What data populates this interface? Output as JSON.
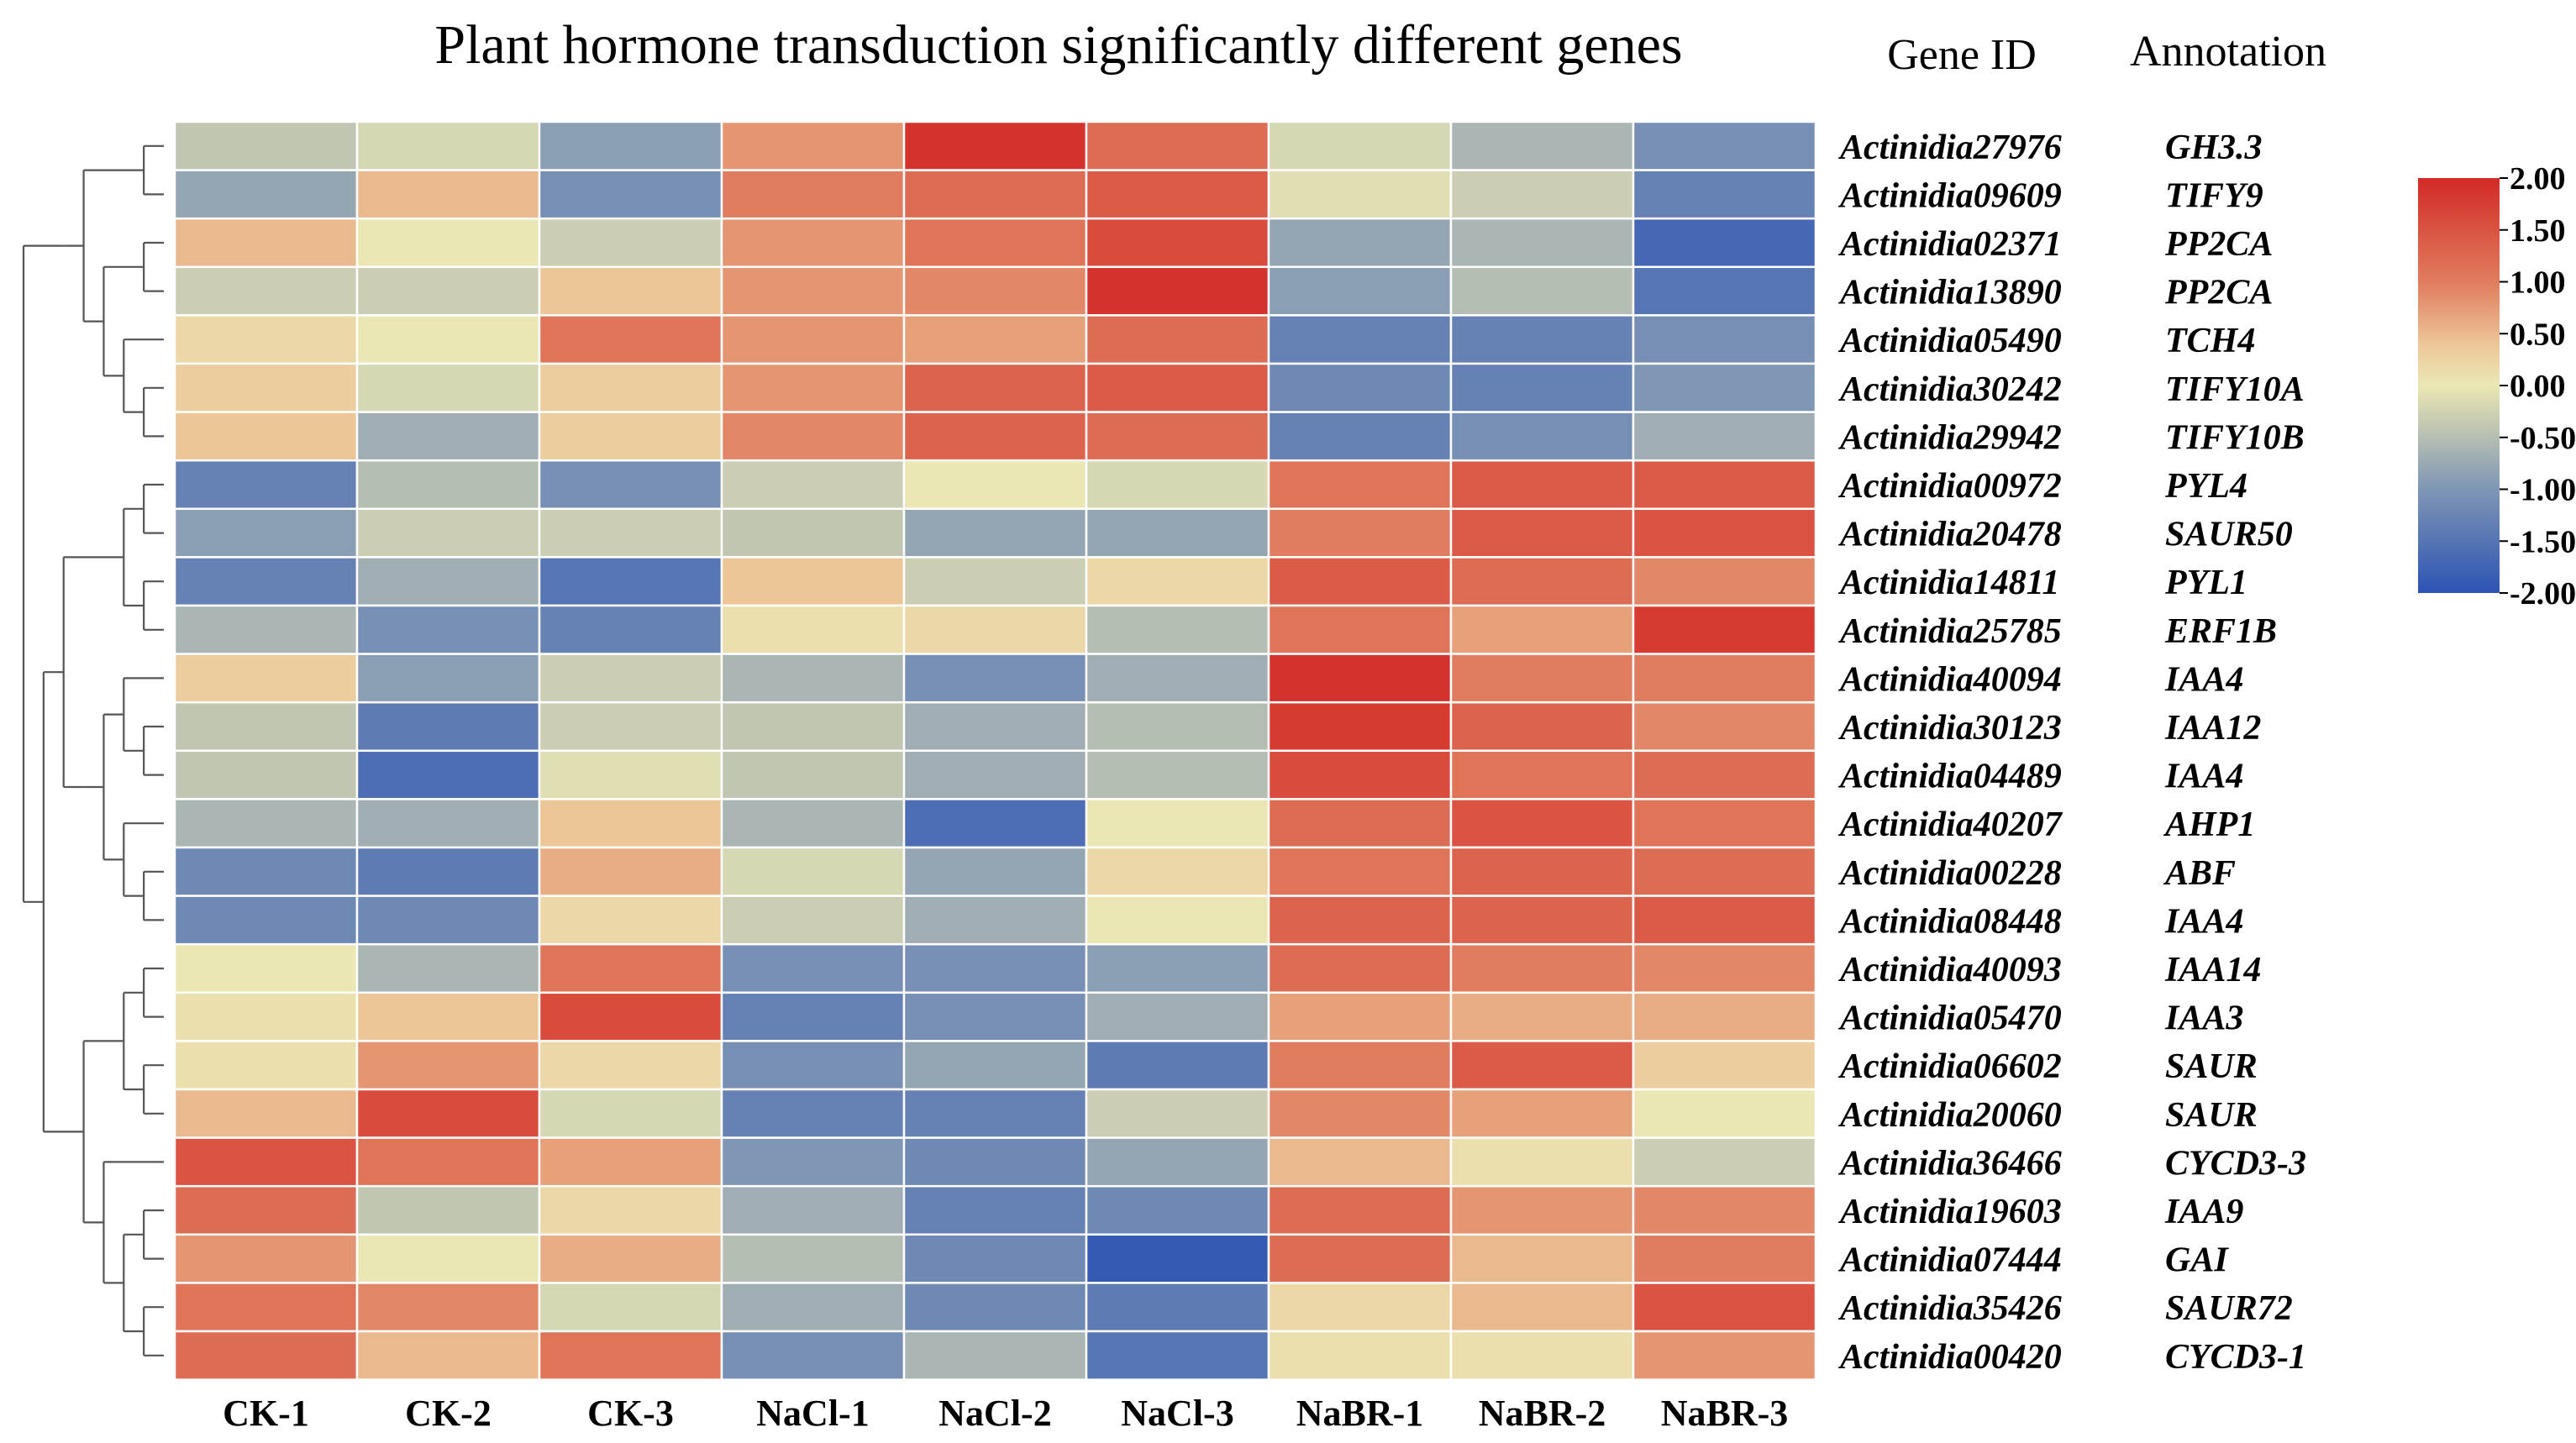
{
  "chart_data": {
    "type": "heatmap",
    "title": "Plant hormone transduction significantly different genes",
    "columns": [
      "CK-1",
      "CK-2",
      "CK-3",
      "NaCl-1",
      "NaCl-2",
      "NaCl-3",
      "NaBR-1",
      "NaBR-2",
      "NaBR-3"
    ],
    "row_header_gene_id": "Gene ID",
    "row_header_annotation": "Annotation",
    "rows": [
      {
        "gene_id": "Actinidia27976",
        "annotation": "GH3.3",
        "values": [
          -0.4,
          -0.2,
          -0.9,
          0.8,
          1.9,
          1.2,
          -0.2,
          -0.6,
          -1.1
        ]
      },
      {
        "gene_id": "Actinidia09609",
        "annotation": "TIFY9",
        "values": [
          -0.8,
          0.5,
          -1.1,
          1.0,
          1.2,
          1.4,
          -0.1,
          -0.3,
          -1.3
        ]
      },
      {
        "gene_id": "Actinidia02371",
        "annotation": "PP2CA",
        "values": [
          0.5,
          0.0,
          -0.3,
          0.8,
          1.1,
          1.6,
          -0.8,
          -0.6,
          -1.7
        ]
      },
      {
        "gene_id": "Actinidia13890",
        "annotation": "PP2CA",
        "values": [
          -0.3,
          -0.3,
          0.4,
          0.8,
          0.9,
          1.9,
          -0.9,
          -0.5,
          -1.5
        ]
      },
      {
        "gene_id": "Actinidia05490",
        "annotation": "TCH4",
        "values": [
          0.2,
          0.0,
          1.1,
          0.8,
          0.7,
          1.2,
          -1.3,
          -1.3,
          -1.1
        ]
      },
      {
        "gene_id": "Actinidia30242",
        "annotation": "TIFY10A",
        "values": [
          0.3,
          -0.2,
          0.3,
          0.8,
          1.3,
          1.4,
          -1.2,
          -1.3,
          -1.0
        ]
      },
      {
        "gene_id": "Actinidia29942",
        "annotation": "TIFY10B",
        "values": [
          0.4,
          -0.7,
          0.3,
          0.9,
          1.3,
          1.2,
          -1.3,
          -1.1,
          -0.7
        ]
      },
      {
        "gene_id": "Actinidia00972",
        "annotation": "PYL4",
        "values": [
          -1.3,
          -0.5,
          -1.1,
          -0.3,
          0.0,
          -0.2,
          1.1,
          1.4,
          1.4
        ]
      },
      {
        "gene_id": "Actinidia20478",
        "annotation": "SAUR50",
        "values": [
          -0.9,
          -0.3,
          -0.3,
          -0.4,
          -0.8,
          -0.8,
          1.0,
          1.4,
          1.5
        ]
      },
      {
        "gene_id": "Actinidia14811",
        "annotation": "PYL1",
        "values": [
          -1.3,
          -0.7,
          -1.5,
          0.4,
          -0.3,
          0.2,
          1.4,
          1.2,
          0.9
        ]
      },
      {
        "gene_id": "Actinidia25785",
        "annotation": "ERF1B",
        "values": [
          -0.6,
          -1.1,
          -1.3,
          0.1,
          0.2,
          -0.5,
          1.1,
          0.7,
          1.8
        ]
      },
      {
        "gene_id": "Actinidia40094",
        "annotation": "IAA4",
        "values": [
          0.3,
          -0.9,
          -0.3,
          -0.6,
          -1.1,
          -0.7,
          1.9,
          1.0,
          1.0
        ]
      },
      {
        "gene_id": "Actinidia30123",
        "annotation": "IAA12",
        "values": [
          -0.4,
          -1.4,
          -0.3,
          -0.4,
          -0.7,
          -0.5,
          1.8,
          1.3,
          0.9
        ]
      },
      {
        "gene_id": "Actinidia04489",
        "annotation": "IAA4",
        "values": [
          -0.4,
          -1.6,
          -0.1,
          -0.4,
          -0.7,
          -0.5,
          1.6,
          1.1,
          1.2
        ]
      },
      {
        "gene_id": "Actinidia40207",
        "annotation": "AHP1",
        "values": [
          -0.6,
          -0.7,
          0.4,
          -0.6,
          -1.6,
          0.0,
          1.2,
          1.5,
          1.1
        ]
      },
      {
        "gene_id": "Actinidia00228",
        "annotation": "ABF",
        "values": [
          -1.2,
          -1.4,
          0.6,
          -0.2,
          -0.8,
          0.2,
          1.1,
          1.3,
          1.2
        ]
      },
      {
        "gene_id": "Actinidia08448",
        "annotation": "IAA4",
        "values": [
          -1.2,
          -1.2,
          0.2,
          -0.3,
          -0.7,
          0.0,
          1.3,
          1.3,
          1.4
        ]
      },
      {
        "gene_id": "Actinidia40093",
        "annotation": "IAA14",
        "values": [
          0.0,
          -0.6,
          1.1,
          -1.1,
          -1.1,
          -0.9,
          1.2,
          1.0,
          0.9
        ]
      },
      {
        "gene_id": "Actinidia05470",
        "annotation": "IAA3",
        "values": [
          0.1,
          0.4,
          1.6,
          -1.3,
          -1.1,
          -0.7,
          0.7,
          0.6,
          0.6
        ]
      },
      {
        "gene_id": "Actinidia06602",
        "annotation": "SAUR",
        "values": [
          0.1,
          0.8,
          0.2,
          -1.1,
          -0.8,
          -1.4,
          1.0,
          1.4,
          0.3
        ]
      },
      {
        "gene_id": "Actinidia20060",
        "annotation": "SAUR",
        "values": [
          0.5,
          1.6,
          -0.2,
          -1.3,
          -1.3,
          -0.3,
          0.9,
          0.7,
          0.0
        ]
      },
      {
        "gene_id": "Actinidia36466",
        "annotation": "CYCD3-3",
        "values": [
          1.5,
          1.1,
          0.7,
          -1.0,
          -1.2,
          -0.8,
          0.5,
          0.1,
          -0.3
        ]
      },
      {
        "gene_id": "Actinidia19603",
        "annotation": "IAA9",
        "values": [
          1.2,
          -0.4,
          0.2,
          -0.7,
          -1.3,
          -1.2,
          1.2,
          0.8,
          0.9
        ]
      },
      {
        "gene_id": "Actinidia07444",
        "annotation": "GAI",
        "values": [
          0.8,
          0.0,
          0.6,
          -0.5,
          -1.2,
          -1.9,
          1.2,
          0.5,
          1.0
        ]
      },
      {
        "gene_id": "Actinidia35426",
        "annotation": "SAUR72",
        "values": [
          1.1,
          0.9,
          -0.2,
          -0.7,
          -1.2,
          -1.4,
          0.2,
          0.5,
          1.5
        ]
      },
      {
        "gene_id": "Actinidia00420",
        "annotation": "CYCD3-1",
        "values": [
          1.2,
          0.5,
          1.1,
          -1.1,
          -0.6,
          -1.5,
          0.1,
          0.1,
          0.8
        ]
      }
    ],
    "color_scale": {
      "range": [
        -2,
        2
      ],
      "ticks": [
        "2.00",
        "1.50",
        "1.00",
        "0.50",
        "0.00",
        "-0.50",
        "-1.00",
        "-1.50",
        "-2.00"
      ],
      "stops": [
        {
          "v": -2.0,
          "color": "#2c53b4"
        },
        {
          "v": -1.0,
          "color": "#7f96b4"
        },
        {
          "v": -0.4,
          "color": "#c0c6b2"
        },
        {
          "v": 0.0,
          "color": "#ebe7b4"
        },
        {
          "v": 0.4,
          "color": "#ecc697"
        },
        {
          "v": 1.0,
          "color": "#e07c5f"
        },
        {
          "v": 2.0,
          "color": "#d32a26"
        }
      ]
    },
    "row_dendrogram": {
      "leaf_order": "same as rows",
      "cluster_tree": [
        [
          [
            [
              0,
              1
            ],
            [
              [
                2,
                3
              ],
              [
                4,
                [
                  5,
                  6
                ]
              ]
            ]
          ]
        ],
        [
          [
            [
              [
                7,
                8
              ],
              [
                9,
                10
              ]
            ],
            [
              [
                [
                  11,
                  [
                    12,
                    13
                  ]
                ],
                [
                  14,
                  [
                    15,
                    16
                  ]
                ]
              ]
            ]
          ],
          [
            [
              [
                17,
                18
              ],
              [
                19,
                20
              ]
            ],
            [
              21,
              [
                [
                  22,
                  23
                ],
                [
                  24,
                  25
                ]
              ]
            ]
          ]
        ]
      ]
    },
    "legend_position": "top-right"
  }
}
